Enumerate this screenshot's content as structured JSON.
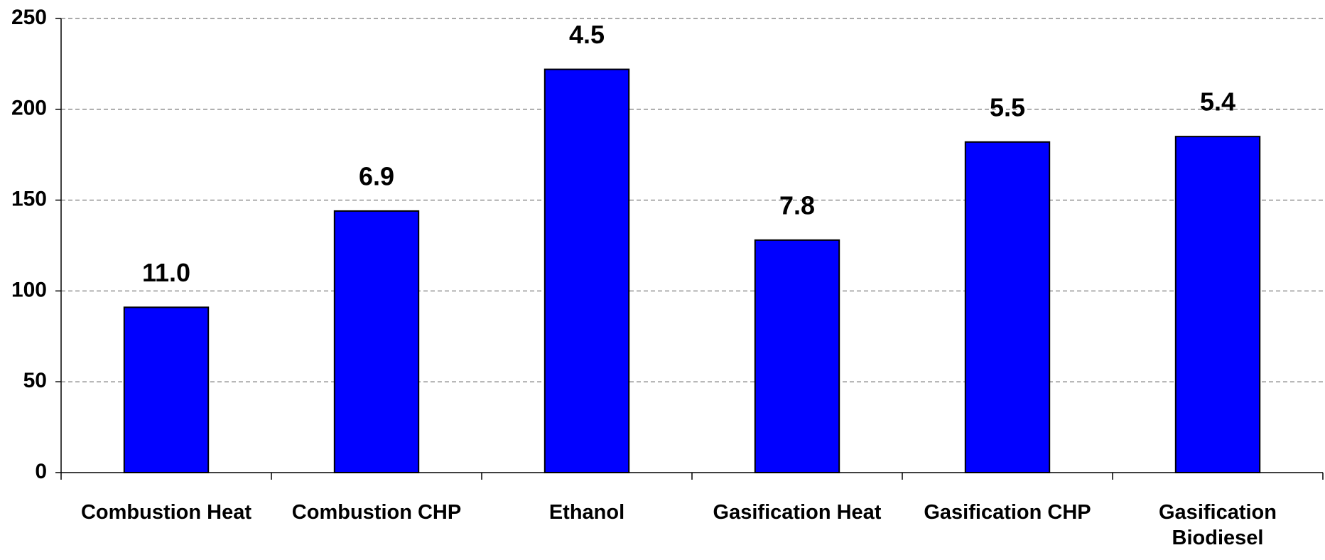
{
  "chart_data": {
    "type": "bar",
    "categories": [
      "Combustion Heat",
      "Combustion CHP",
      "Ethanol",
      "Gasification Heat",
      "Gasification CHP",
      "Gasification Biodiesel"
    ],
    "values": [
      91,
      144,
      222,
      128,
      182,
      185
    ],
    "annotations": [
      "11.0",
      "6.9",
      "4.5",
      "7.8",
      "5.5",
      "5.4"
    ],
    "color": "#0000ff",
    "ylim": [
      0,
      250
    ],
    "yticks": [
      0,
      50,
      100,
      150,
      200,
      250
    ],
    "grid": true
  }
}
